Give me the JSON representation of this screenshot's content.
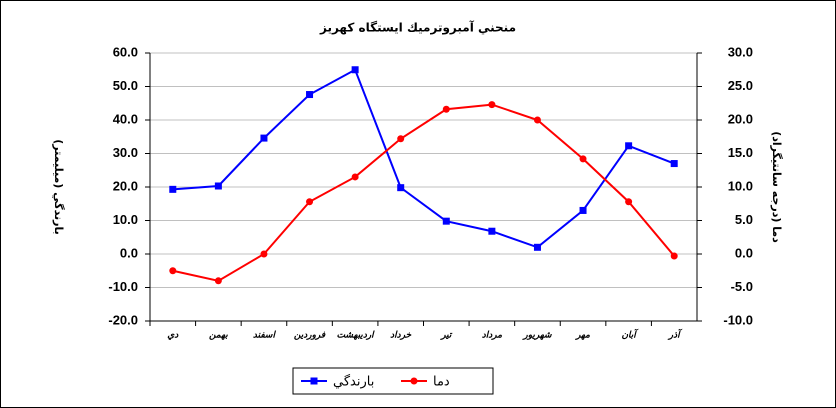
{
  "chart_data": {
    "type": "line",
    "title": "منحني آمبروترميك ايستگاه كهريز",
    "y_label": "بارندگي (ميليمتر)",
    "y2_label": "دما (درجه سانتيگراد)",
    "categories": [
      "دي",
      "بهمن",
      "اسفند",
      "فروردين",
      "ارديبهشت",
      "خرداد",
      "تير",
      "مرداد",
      "شهريور",
      "مهر",
      "آبان",
      "آذر"
    ],
    "series": [
      {
        "name": "بارندگي",
        "color": "#0000ff",
        "marker": "square",
        "axis": "y",
        "values": [
          19.3,
          20.3,
          34.6,
          47.6,
          55.0,
          19.8,
          9.8,
          6.8,
          2.0,
          13.0,
          32.3,
          27.0
        ]
      },
      {
        "name": "دما",
        "color": "#ff0000",
        "marker": "circle",
        "axis": "y2",
        "values": [
          -2.5,
          -4.0,
          0.0,
          7.8,
          11.5,
          17.2,
          21.6,
          22.3,
          20.0,
          14.2,
          7.8,
          -0.3
        ]
      }
    ],
    "ylim": [
      -20,
      60
    ],
    "yticks": [
      {
        "value": -20,
        "label": "-20.0"
      },
      {
        "value": -10,
        "label": "-10.0"
      },
      {
        "value": 0,
        "label": "0.0"
      },
      {
        "value": 10,
        "label": "10.0"
      },
      {
        "value": 20,
        "label": "20.0"
      },
      {
        "value": 30,
        "label": "30.0"
      },
      {
        "value": 40,
        "label": "40.0"
      },
      {
        "value": 50,
        "label": "50.0"
      },
      {
        "value": 60,
        "label": "60.0"
      }
    ],
    "y2lim": [
      -10,
      30
    ],
    "y2ticks": [
      {
        "value": -10,
        "label": "-10.0"
      },
      {
        "value": -5,
        "label": "-5.0"
      },
      {
        "value": 0,
        "label": "0.0"
      },
      {
        "value": 5,
        "label": "5.0"
      },
      {
        "value": 10,
        "label": "10.0"
      },
      {
        "value": 15,
        "label": "15.0"
      },
      {
        "value": 20,
        "label": "20.0"
      },
      {
        "value": 25,
        "label": "25.0"
      },
      {
        "value": 30,
        "label": "30.0"
      }
    ],
    "grid": true,
    "legend": "bottom"
  }
}
